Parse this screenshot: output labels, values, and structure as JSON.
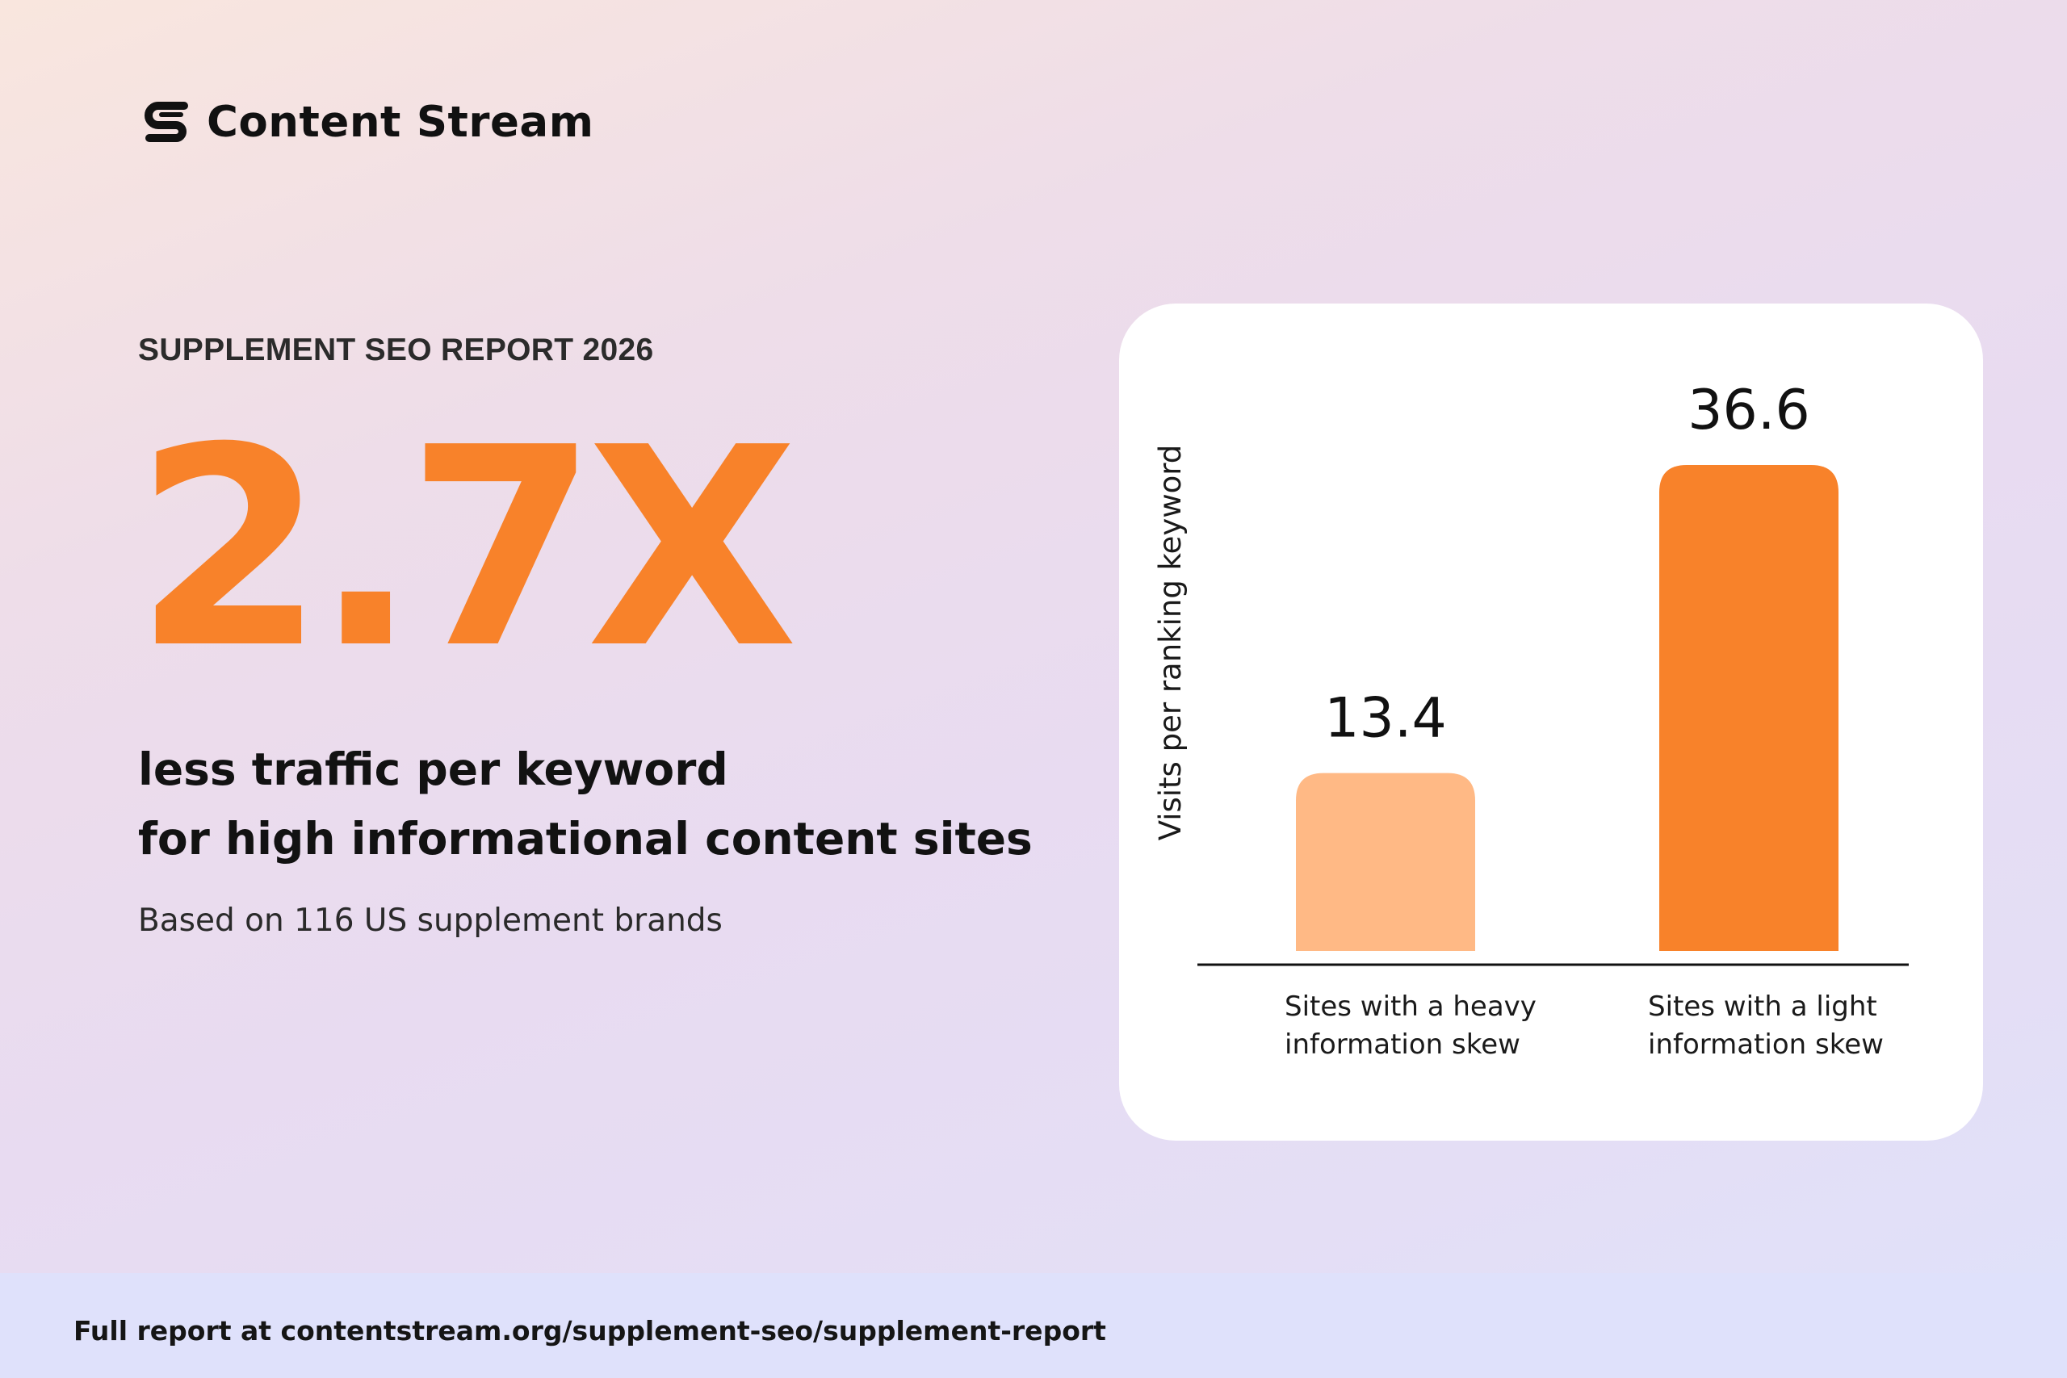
{
  "brand": {
    "name": "Content Stream",
    "icon": "content-stream-logo-icon"
  },
  "eyebrow": "SUPPLEMENT SEO REPORT 2026",
  "stat": {
    "value": "2.7X"
  },
  "headline": {
    "line1": "less traffic per keyword",
    "line2": "for high informational content sites"
  },
  "subnote": "Based on 116 US supplement brands",
  "footer": {
    "text": "Full report at contentstream.org/supplement-seo/supplement-report"
  },
  "colors": {
    "accent": "#F8822A",
    "accent_light": "#FFB985",
    "text": "#121212",
    "card": "#FFFFFF",
    "footer_bg": "#DFE1FB"
  },
  "chart_data": {
    "type": "bar",
    "categories": [
      [
        "Sites with a heavy",
        "information skew"
      ],
      [
        "Sites with a light",
        "information skew"
      ]
    ],
    "values": [
      13.4,
      36.6
    ],
    "value_labels": [
      "13.4",
      "36.6"
    ],
    "bar_colors": [
      "#FFB985",
      "#F8822A"
    ],
    "title": "",
    "xlabel": "",
    "ylabel": "Visits per ranking keyword",
    "ylim": [
      0,
      36.6
    ],
    "grid": false,
    "legend": "none"
  }
}
